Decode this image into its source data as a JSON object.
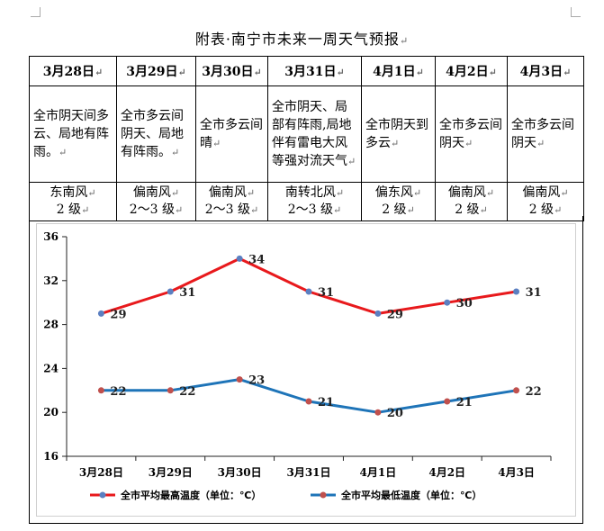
{
  "title": "附表·南宁市未来一周天气预报",
  "days": [
    {
      "date": "3月28日",
      "desc": "全市阴天间多云、局地有阵雨。",
      "wind": "东南风",
      "level": "2 级"
    },
    {
      "date": "3月29日",
      "desc": "全市多云间阴天、局地有阵雨。",
      "wind": "偏南风",
      "level": "2～3 级"
    },
    {
      "date": "3月30日",
      "desc": "全市多云间晴",
      "wind": "偏南风",
      "level": "2～3 级"
    },
    {
      "date": "3月31日",
      "desc": "全市阴天、局部有阵雨,局地伴有雷电大风等强对流天气",
      "wind": "南转北风",
      "level": "2～3 级"
    },
    {
      "date": "4月1日",
      "desc": "全市阴天到多云",
      "wind": "偏东风",
      "level": "2 级"
    },
    {
      "date": "4月2日",
      "desc": "全市多云间阴天",
      "wind": "偏南风",
      "level": "2 级"
    },
    {
      "date": "4月3日",
      "desc": "全市多云间阴天",
      "wind": "偏南风",
      "level": "2 级"
    }
  ],
  "chart_data": {
    "type": "line",
    "categories": [
      "3月28日",
      "3月29日",
      "3月30日",
      "3月31日",
      "4月1日",
      "4月2日",
      "4月3日"
    ],
    "series": [
      {
        "name": "全市平均最高温度（单位：℃）",
        "values": [
          29,
          31,
          34,
          31,
          29,
          30,
          31
        ],
        "color": "#e8191c"
      },
      {
        "name": "全市平均最低温度（单位：℃）",
        "values": [
          22,
          22,
          23,
          21,
          20,
          21,
          22
        ],
        "color": "#1e74b8"
      }
    ],
    "yticks": [
      16,
      20,
      24,
      28,
      32,
      36
    ],
    "ylim": [
      16,
      36
    ]
  },
  "colors": {
    "marker": "#5b7fc1",
    "marker_low": "#c0504d"
  }
}
